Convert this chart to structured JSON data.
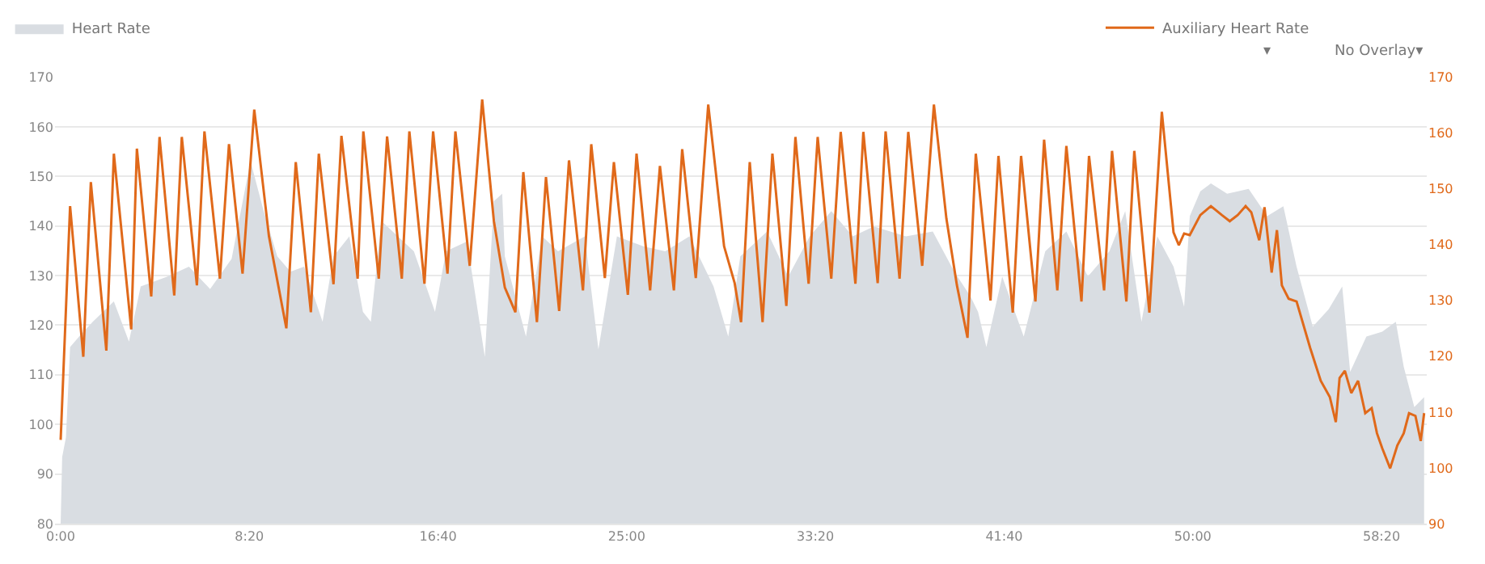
{
  "chart_data": {
    "type": "line",
    "series": [
      {
        "name": "Heart Rate",
        "type": "area",
        "color": "#d9dde2",
        "x": [
          0,
          4,
          14,
          25,
          49,
          85,
          141,
          181,
          212,
          283,
          340,
          396,
          453,
          503,
          538,
          574,
          609,
          645,
          694,
          723,
          765,
          801,
          822,
          850,
          936,
          992,
          1021,
          1077,
          1124,
          1148,
          1170,
          1177,
          1233,
          1276,
          1318,
          1389,
          1425,
          1474,
          1545,
          1602,
          1666,
          1730,
          1769,
          1801,
          1872,
          1928,
          1985,
          2042,
          2099,
          2155,
          2240,
          2311,
          2368,
          2411,
          2431,
          2453,
          2495,
          2552,
          2609,
          2665,
          2722,
          2779,
          2821,
          2864,
          2906,
          2949,
          2977,
          2992,
          3020,
          3048,
          3091,
          3148,
          3197,
          3240,
          3275,
          3318,
          3360,
          3396,
          3417,
          3460,
          3502,
          3538,
          3559,
          3587,
          3613
        ],
        "values": [
          80,
          93.4,
          97.4,
          115.6,
          117.7,
          120.7,
          124.8,
          116.7,
          127.8,
          129.8,
          131.8,
          127.3,
          133.4,
          153.1,
          143,
          133.9,
          130.8,
          131.8,
          120.7,
          133.9,
          137.9,
          122.7,
          120.7,
          141,
          134.9,
          122.7,
          134.9,
          136.9,
          113.6,
          145,
          146.5,
          133.9,
          117.7,
          137.9,
          134.9,
          137.9,
          115.1,
          137.9,
          135.9,
          134.9,
          137.9,
          127.8,
          117.7,
          133.9,
          138.9,
          129.8,
          137.9,
          143,
          137.9,
          139.9,
          137.9,
          138.9,
          130.8,
          125.8,
          122.7,
          115.6,
          129.8,
          117.7,
          134.9,
          138.9,
          129.8,
          134.9,
          143,
          120.7,
          137.9,
          131.8,
          123.7,
          142,
          147,
          148.6,
          146.5,
          147.5,
          142,
          144,
          131.8,
          119.7,
          123.2,
          127.8,
          110.6,
          117.7,
          118.7,
          120.7,
          111.6,
          103.5,
          105.5
        ]
      },
      {
        "name": "Auxiliary Heart Rate",
        "type": "line",
        "axis": "y2",
        "color": "#e0691a",
        "x": [
          0,
          25,
          60,
          80,
          121,
          141,
          187,
          202,
          240,
          262,
          301,
          321,
          361,
          381,
          422,
          446,
          482,
          513,
          552,
          598,
          623,
          663,
          684,
          723,
          744,
          787,
          802,
          843,
          865,
          904,
          924,
          964,
          987,
          1025,
          1046,
          1084,
          1117,
          1148,
          1177,
          1205,
          1226,
          1262,
          1286,
          1321,
          1347,
          1384,
          1406,
          1442,
          1466,
          1503,
          1526,
          1562,
          1588,
          1625,
          1647,
          1683,
          1716,
          1758,
          1786,
          1803,
          1826,
          1860,
          1886,
          1923,
          1947,
          1982,
          2006,
          2042,
          2067,
          2106,
          2127,
          2165,
          2186,
          2223,
          2246,
          2283,
          2314,
          2347,
          2375,
          2403,
          2425,
          2464,
          2485,
          2523,
          2545,
          2583,
          2606,
          2641,
          2665,
          2705,
          2725,
          2765,
          2786,
          2824,
          2845,
          2885,
          2918,
          2949,
          2963,
          2977,
          2992,
          3020,
          3048,
          3077,
          3098,
          3119,
          3140,
          3155,
          3176,
          3190,
          3209,
          3223,
          3236,
          3254,
          3275,
          3311,
          3339,
          3363,
          3379,
          3389,
          3403,
          3420,
          3438,
          3457,
          3474,
          3488,
          3502,
          3523,
          3542,
          3559,
          3573,
          3590,
          3604,
          3613
        ],
        "values": [
          105,
          146.9,
          119.9,
          151.2,
          121,
          156.3,
          124.8,
          157.2,
          130.7,
          159.3,
          130.9,
          159.3,
          132.7,
          160.3,
          133.9,
          158,
          134.8,
          164.2,
          141.5,
          125,
          154.8,
          127.9,
          156.3,
          132.9,
          159.5,
          133.9,
          160.3,
          133.9,
          159.4,
          133.9,
          160.3,
          133,
          160.3,
          134.8,
          160.3,
          136.2,
          166,
          144.2,
          132.3,
          127.9,
          153,
          126.1,
          152.1,
          128.1,
          155.1,
          131.8,
          158,
          134,
          154.8,
          131,
          156.3,
          131.8,
          154.1,
          131.8,
          157.1,
          134,
          165.1,
          139.7,
          133.1,
          126.1,
          154.8,
          126.1,
          156.3,
          129,
          159.3,
          133,
          159.3,
          133.9,
          160.2,
          133,
          160.2,
          133.1,
          160.3,
          133.9,
          160.2,
          136.2,
          165.1,
          144.7,
          132.7,
          123.3,
          156.3,
          130,
          155.9,
          127.8,
          155.9,
          129.8,
          158.8,
          131.8,
          157.7,
          129.8,
          155.9,
          131.8,
          156.8,
          129.8,
          156.8,
          127.8,
          163.8,
          142.2,
          139.9,
          142,
          141.7,
          145.3,
          146.9,
          145.3,
          144.2,
          145.3,
          146.9,
          145.8,
          140.8,
          146.7,
          135,
          142.6,
          132.7,
          130.3,
          129.8,
          121.5,
          115.6,
          112.7,
          108.2,
          116.1,
          117.4,
          113.4,
          115.6,
          109.8,
          110.7,
          106.2,
          103.5,
          99.9,
          104,
          106.2,
          109.8,
          109.3,
          104.8,
          109.8
        ]
      }
    ],
    "xlim": [
      -15,
      3620
    ],
    "xticks": [
      {
        "value": 0,
        "label": "0:00"
      },
      {
        "value": 500,
        "label": "8:20"
      },
      {
        "value": 1000,
        "label": "16:40"
      },
      {
        "value": 1500,
        "label": "25:00"
      },
      {
        "value": 2000,
        "label": "33:20"
      },
      {
        "value": 2500,
        "label": "41:40"
      },
      {
        "value": 3000,
        "label": "50:00"
      },
      {
        "value": 3500,
        "label": "58:20"
      }
    ],
    "ylim": [
      80,
      170
    ],
    "yticks": [
      80,
      90,
      100,
      110,
      120,
      130,
      140,
      150,
      160,
      170
    ],
    "y2lim": [
      90,
      170
    ],
    "y2ticks": [
      90,
      100,
      110,
      120,
      130,
      140,
      150,
      160,
      170
    ],
    "grid": "y",
    "legend": "top",
    "marker": "none",
    "annotations": [
      "▾",
      "No Overlay▾"
    ]
  }
}
